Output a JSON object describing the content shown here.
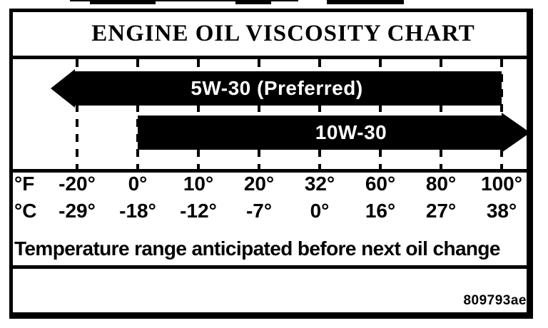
{
  "title": "ENGINE OIL VISCOSITY CHART",
  "bars": {
    "preferred_label": "5W-30 (Preferred)",
    "alt_label": "10W-30"
  },
  "scale": {
    "f_unit": "°F",
    "c_unit": "°C",
    "f_values": [
      "-20°",
      "0°",
      "10°",
      "20°",
      "32°",
      "60°",
      "80°",
      "100°"
    ],
    "c_values": [
      "-29°",
      "-18°",
      "-12°",
      "-7°",
      "0°",
      "16°",
      "27°",
      "38°"
    ]
  },
  "note": "Temperature range anticipated before next oil change",
  "footer_code": "809793ae",
  "colors": {
    "ink": "#000000",
    "paper": "#ffffff",
    "bar_fill": "#000000",
    "bar_text": "#ffffff"
  },
  "chart_data": {
    "type": "bar",
    "orientation": "horizontal-range",
    "title": "ENGINE OIL VISCOSITY CHART",
    "x_axis": {
      "fahrenheit_label": "°F",
      "fahrenheit_ticks": [
        -20,
        0,
        10,
        20,
        32,
        60,
        80,
        100
      ],
      "celsius_label": "°C",
      "celsius_ticks": [
        -29,
        -18,
        -12,
        -7,
        0,
        16,
        27,
        38
      ],
      "gridlines": "dashed-vertical"
    },
    "series": [
      {
        "name": "5W-30 (Preferred)",
        "range_f": [
          -20,
          100
        ],
        "range_c": [
          -29,
          38
        ],
        "arrow_direction": "left",
        "arrow_meaning": "extends below -20°F"
      },
      {
        "name": "10W-30",
        "range_f": [
          0,
          100
        ],
        "range_c": [
          -18,
          38
        ],
        "arrow_direction": "right",
        "arrow_meaning": "extends above 100°F"
      }
    ],
    "annotation": "Temperature range anticipated before next oil change",
    "figure_code": "809793ae"
  }
}
